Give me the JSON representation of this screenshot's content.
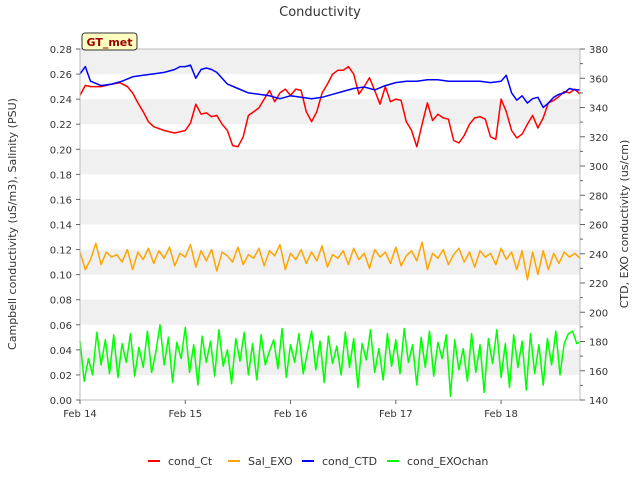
{
  "chart_data": {
    "type": "line",
    "title": "Conductivity",
    "ylabel": "Campbell conductivity (uS/m3), Salinity (PSU)",
    "y2label": "CTD, EXO conductivity (us/cm)",
    "badge": "GT_met",
    "x_ticks": [
      "Feb 14",
      "Feb 15",
      "Feb 16",
      "Feb 17",
      "Feb 18"
    ],
    "xlim": [
      0,
      4.75
    ],
    "ylim": [
      0,
      0.28
    ],
    "y_ticks": [
      0.0,
      0.02,
      0.04,
      0.06,
      0.08,
      0.1,
      0.12,
      0.14,
      0.16,
      0.18,
      0.2,
      0.22,
      0.24,
      0.26,
      0.28
    ],
    "y2lim": [
      140,
      380
    ],
    "y2_ticks": [
      140,
      160,
      180,
      200,
      220,
      240,
      260,
      280,
      300,
      320,
      340,
      360,
      380
    ],
    "grid": "horizontal alternating bands",
    "legend_position": "bottom",
    "series": [
      {
        "name": "cond_Ct",
        "color": "#ff0000",
        "axis": "left",
        "x": [
          0.0,
          0.05,
          0.1,
          0.2,
          0.3,
          0.38,
          0.45,
          0.5,
          0.55,
          0.6,
          0.65,
          0.7,
          0.8,
          0.9,
          1.0,
          1.05,
          1.1,
          1.15,
          1.2,
          1.25,
          1.3,
          1.35,
          1.4,
          1.45,
          1.5,
          1.55,
          1.6,
          1.65,
          1.7,
          1.75,
          1.8,
          1.85,
          1.9,
          1.95,
          2.0,
          2.05,
          2.1,
          2.15,
          2.2,
          2.25,
          2.3,
          2.35,
          2.4,
          2.45,
          2.5,
          2.55,
          2.6,
          2.65,
          2.7,
          2.75,
          2.8,
          2.85,
          2.9,
          2.95,
          3.0,
          3.05,
          3.1,
          3.15,
          3.2,
          3.25,
          3.3,
          3.35,
          3.4,
          3.45,
          3.5,
          3.55,
          3.6,
          3.65,
          3.7,
          3.75,
          3.8,
          3.85,
          3.9,
          3.95,
          4.0,
          4.05,
          4.1,
          4.15,
          4.2,
          4.25,
          4.3,
          4.35,
          4.4,
          4.45,
          4.5,
          4.55,
          4.6,
          4.65,
          4.7,
          4.75
        ],
        "y": [
          0.243,
          0.251,
          0.25,
          0.25,
          0.252,
          0.253,
          0.25,
          0.245,
          0.237,
          0.23,
          0.222,
          0.218,
          0.215,
          0.213,
          0.215,
          0.221,
          0.236,
          0.228,
          0.229,
          0.226,
          0.227,
          0.22,
          0.215,
          0.203,
          0.202,
          0.21,
          0.227,
          0.23,
          0.233,
          0.24,
          0.247,
          0.238,
          0.245,
          0.248,
          0.243,
          0.248,
          0.247,
          0.23,
          0.222,
          0.23,
          0.245,
          0.252,
          0.26,
          0.263,
          0.263,
          0.266,
          0.26,
          0.244,
          0.25,
          0.257,
          0.247,
          0.236,
          0.25,
          0.238,
          0.24,
          0.239,
          0.222,
          0.215,
          0.202,
          0.22,
          0.237,
          0.223,
          0.228,
          0.225,
          0.224,
          0.207,
          0.205,
          0.211,
          0.22,
          0.225,
          0.226,
          0.224,
          0.21,
          0.208,
          0.24,
          0.23,
          0.215,
          0.209,
          0.212,
          0.22,
          0.227,
          0.217,
          0.225,
          0.237,
          0.239,
          0.242,
          0.246,
          0.245,
          0.248,
          0.244
        ]
      },
      {
        "name": "Sal_EXO",
        "color": "#ffa500",
        "axis": "left",
        "x": [
          0.0,
          0.05,
          0.1,
          0.15,
          0.2,
          0.25,
          0.3,
          0.35,
          0.4,
          0.45,
          0.5,
          0.55,
          0.6,
          0.65,
          0.7,
          0.75,
          0.8,
          0.85,
          0.9,
          0.95,
          1.0,
          1.05,
          1.1,
          1.15,
          1.2,
          1.25,
          1.3,
          1.35,
          1.4,
          1.45,
          1.5,
          1.55,
          1.6,
          1.65,
          1.7,
          1.75,
          1.8,
          1.85,
          1.9,
          1.95,
          2.0,
          2.05,
          2.1,
          2.15,
          2.2,
          2.25,
          2.3,
          2.35,
          2.4,
          2.45,
          2.5,
          2.55,
          2.6,
          2.65,
          2.7,
          2.75,
          2.8,
          2.85,
          2.9,
          2.95,
          3.0,
          3.05,
          3.1,
          3.15,
          3.2,
          3.25,
          3.3,
          3.35,
          3.4,
          3.45,
          3.5,
          3.55,
          3.6,
          3.65,
          3.7,
          3.75,
          3.8,
          3.85,
          3.9,
          3.95,
          4.0,
          4.05,
          4.1,
          4.15,
          4.2,
          4.25,
          4.3,
          4.35,
          4.4,
          4.45,
          4.5,
          4.55,
          4.6,
          4.65,
          4.7,
          4.75
        ],
        "y": [
          0.118,
          0.104,
          0.112,
          0.125,
          0.108,
          0.118,
          0.114,
          0.116,
          0.11,
          0.12,
          0.104,
          0.118,
          0.112,
          0.121,
          0.109,
          0.119,
          0.113,
          0.122,
          0.107,
          0.117,
          0.114,
          0.124,
          0.106,
          0.119,
          0.111,
          0.12,
          0.103,
          0.118,
          0.115,
          0.11,
          0.122,
          0.108,
          0.116,
          0.113,
          0.121,
          0.107,
          0.119,
          0.115,
          0.124,
          0.104,
          0.117,
          0.112,
          0.12,
          0.109,
          0.118,
          0.111,
          0.123,
          0.106,
          0.116,
          0.113,
          0.119,
          0.108,
          0.121,
          0.112,
          0.117,
          0.105,
          0.12,
          0.114,
          0.118,
          0.109,
          0.122,
          0.107,
          0.115,
          0.119,
          0.111,
          0.126,
          0.104,
          0.117,
          0.113,
          0.12,
          0.108,
          0.116,
          0.121,
          0.11,
          0.118,
          0.106,
          0.119,
          0.114,
          0.117,
          0.108,
          0.121,
          0.112,
          0.118,
          0.104,
          0.119,
          0.096,
          0.118,
          0.1,
          0.119,
          0.104,
          0.117,
          0.109,
          0.118,
          0.114,
          0.117,
          0.113
        ]
      },
      {
        "name": "cond_CTD",
        "color": "#0000ff",
        "axis": "right",
        "x": [
          0.0,
          0.05,
          0.1,
          0.2,
          0.3,
          0.4,
          0.5,
          0.6,
          0.7,
          0.8,
          0.9,
          0.95,
          1.0,
          1.05,
          1.1,
          1.15,
          1.2,
          1.25,
          1.3,
          1.35,
          1.4,
          1.5,
          1.6,
          1.7,
          1.8,
          1.9,
          2.0,
          2.1,
          2.2,
          2.3,
          2.4,
          2.5,
          2.6,
          2.7,
          2.8,
          2.9,
          3.0,
          3.1,
          3.2,
          3.3,
          3.4,
          3.5,
          3.6,
          3.7,
          3.8,
          3.9,
          4.0,
          4.05,
          4.1,
          4.15,
          4.2,
          4.25,
          4.3,
          4.35,
          4.4,
          4.45,
          4.5,
          4.55,
          4.6,
          4.65,
          4.7,
          4.75
        ],
        "y": [
          363,
          368,
          358,
          355,
          356,
          358,
          361,
          362,
          363,
          364,
          366,
          368,
          368,
          369,
          360,
          366,
          367,
          366,
          364,
          360,
          356,
          353,
          350,
          349,
          348,
          346,
          348,
          347,
          346,
          347,
          349,
          351,
          353,
          354,
          352,
          355,
          357,
          358,
          358,
          359,
          359,
          358,
          358,
          358,
          358,
          357,
          358,
          362,
          350,
          345,
          348,
          343,
          346,
          347,
          340,
          343,
          347,
          349,
          350,
          353,
          352,
          352
        ]
      },
      {
        "name": "cond_EXOchan",
        "color": "#00ff00",
        "axis": "left",
        "x": [
          0.0,
          0.04,
          0.08,
          0.12,
          0.16,
          0.2,
          0.24,
          0.28,
          0.32,
          0.36,
          0.4,
          0.44,
          0.48,
          0.52,
          0.56,
          0.6,
          0.64,
          0.68,
          0.72,
          0.76,
          0.8,
          0.84,
          0.88,
          0.92,
          0.96,
          1.0,
          1.04,
          1.08,
          1.12,
          1.16,
          1.2,
          1.24,
          1.28,
          1.32,
          1.36,
          1.4,
          1.44,
          1.48,
          1.52,
          1.56,
          1.6,
          1.64,
          1.68,
          1.72,
          1.76,
          1.8,
          1.84,
          1.88,
          1.92,
          1.96,
          2.0,
          2.04,
          2.08,
          2.12,
          2.16,
          2.2,
          2.24,
          2.28,
          2.32,
          2.36,
          2.4,
          2.44,
          2.48,
          2.52,
          2.56,
          2.6,
          2.64,
          2.68,
          2.72,
          2.76,
          2.8,
          2.84,
          2.88,
          2.92,
          2.96,
          3.0,
          3.04,
          3.08,
          3.12,
          3.16,
          3.2,
          3.24,
          3.28,
          3.32,
          3.36,
          3.4,
          3.44,
          3.48,
          3.52,
          3.56,
          3.6,
          3.64,
          3.68,
          3.72,
          3.76,
          3.8,
          3.84,
          3.88,
          3.92,
          3.96,
          4.0,
          4.04,
          4.08,
          4.12,
          4.16,
          4.2,
          4.24,
          4.28,
          4.32,
          4.36,
          4.4,
          4.44,
          4.48,
          4.52,
          4.56,
          4.6,
          4.64,
          4.68,
          4.72,
          4.75
        ],
        "y": [
          0.047,
          0.015,
          0.033,
          0.02,
          0.054,
          0.028,
          0.048,
          0.021,
          0.052,
          0.018,
          0.045,
          0.03,
          0.053,
          0.019,
          0.042,
          0.026,
          0.055,
          0.022,
          0.038,
          0.06,
          0.028,
          0.05,
          0.014,
          0.046,
          0.033,
          0.058,
          0.022,
          0.044,
          0.012,
          0.051,
          0.03,
          0.047,
          0.019,
          0.056,
          0.027,
          0.04,
          0.013,
          0.049,
          0.031,
          0.054,
          0.02,
          0.045,
          0.016,
          0.052,
          0.028,
          0.039,
          0.048,
          0.025,
          0.057,
          0.018,
          0.044,
          0.03,
          0.053,
          0.021,
          0.038,
          0.055,
          0.024,
          0.047,
          0.014,
          0.051,
          0.029,
          0.043,
          0.02,
          0.054,
          0.026,
          0.049,
          0.01,
          0.045,
          0.032,
          0.056,
          0.022,
          0.041,
          0.016,
          0.053,
          0.027,
          0.048,
          0.021,
          0.057,
          0.03,
          0.044,
          0.012,
          0.05,
          0.026,
          0.055,
          0.019,
          0.046,
          0.033,
          0.052,
          0.003,
          0.048,
          0.024,
          0.041,
          0.015,
          0.053,
          0.022,
          0.044,
          0.006,
          0.049,
          0.029,
          0.056,
          0.018,
          0.045,
          0.01,
          0.052,
          0.026,
          0.047,
          0.008,
          0.053,
          0.021,
          0.044,
          0.012,
          0.049,
          0.028,
          0.055,
          0.02,
          0.045,
          0.053,
          0.055,
          0.045,
          0.046
        ]
      }
    ]
  }
}
